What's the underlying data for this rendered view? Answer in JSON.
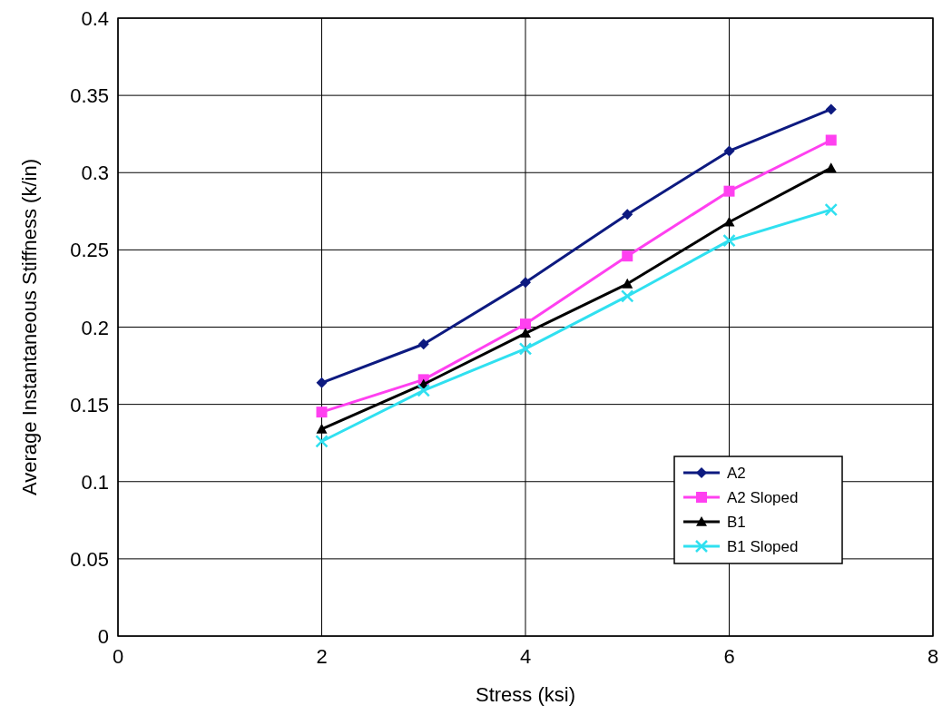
{
  "chart_data": {
    "type": "line",
    "xlabel": "Stress (ksi)",
    "ylabel": "Average Instantaneous Stiffness (k/in)",
    "x": [
      2,
      3,
      4,
      5,
      6,
      7
    ],
    "series": [
      {
        "name": "A2",
        "color": "#0d1a80",
        "marker": "diamond",
        "values": [
          0.164,
          0.189,
          0.229,
          0.273,
          0.314,
          0.341
        ]
      },
      {
        "name": "A2 Sloped",
        "color": "#ff40f0",
        "marker": "square",
        "values": [
          0.145,
          0.166,
          0.202,
          0.246,
          0.288,
          0.321
        ]
      },
      {
        "name": "B1",
        "color": "#000000",
        "marker": "triangle",
        "values": [
          0.134,
          0.163,
          0.196,
          0.228,
          0.268,
          0.303
        ]
      },
      {
        "name": "B1 Sloped",
        "color": "#30e0f0",
        "marker": "cross",
        "values": [
          0.126,
          0.159,
          0.186,
          0.22,
          0.256,
          0.276
        ]
      }
    ],
    "xlim": [
      0,
      8
    ],
    "xticks": [
      0,
      2,
      4,
      6,
      8
    ],
    "ylim": [
      0,
      0.4
    ],
    "yticks": [
      0,
      0.05,
      0.1,
      0.15,
      0.2,
      0.25,
      0.3,
      0.35,
      0.4
    ],
    "grid": true,
    "legend": "bottom right",
    "line_style": "solid"
  }
}
